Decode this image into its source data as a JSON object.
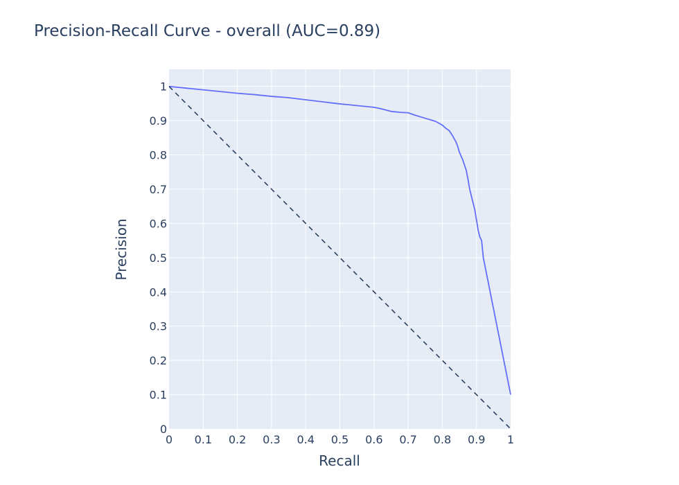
{
  "chart_data": {
    "type": "line",
    "title": "Precision-Recall Curve - overall (AUC=0.89)",
    "xlabel": "Recall",
    "ylabel": "Precision",
    "xlim": [
      0,
      1
    ],
    "ylim": [
      0,
      1.05
    ],
    "grid": true,
    "x_ticks": [
      "0",
      "0.1",
      "0.2",
      "0.3",
      "0.4",
      "0.5",
      "0.6",
      "0.7",
      "0.8",
      "0.9",
      "1"
    ],
    "y_ticks": [
      "0",
      "0.1",
      "0.2",
      "0.3",
      "0.4",
      "0.5",
      "0.6",
      "0.7",
      "0.8",
      "0.9",
      "1"
    ],
    "series": [
      {
        "style": "solid",
        "color": "#636efa",
        "x": [
          0,
          0.05,
          0.1,
          0.15,
          0.2,
          0.25,
          0.3,
          0.35,
          0.4,
          0.45,
          0.5,
          0.55,
          0.6,
          0.62,
          0.65,
          0.68,
          0.7,
          0.72,
          0.75,
          0.78,
          0.8,
          0.81,
          0.82,
          0.83,
          0.84,
          0.845,
          0.85,
          0.86,
          0.87,
          0.875,
          0.88,
          0.885,
          0.89,
          0.895,
          0.9,
          0.905,
          0.91,
          0.915,
          0.92,
          0.93,
          0.94,
          0.95,
          0.96,
          0.97,
          0.98,
          0.99,
          1.0
        ],
        "y": [
          1.0,
          0.995,
          0.99,
          0.985,
          0.98,
          0.976,
          0.971,
          0.967,
          0.961,
          0.955,
          0.949,
          0.944,
          0.939,
          0.935,
          0.927,
          0.924,
          0.923,
          0.916,
          0.907,
          0.898,
          0.887,
          0.878,
          0.871,
          0.856,
          0.838,
          0.825,
          0.808,
          0.785,
          0.755,
          0.73,
          0.7,
          0.68,
          0.66,
          0.64,
          0.61,
          0.58,
          0.56,
          0.55,
          0.5,
          0.45,
          0.4,
          0.35,
          0.3,
          0.25,
          0.2,
          0.15,
          0.1
        ]
      },
      {
        "style": "dash",
        "color": "#2a3f5f",
        "x": [
          0,
          1
        ],
        "y": [
          1,
          0
        ]
      }
    ]
  }
}
